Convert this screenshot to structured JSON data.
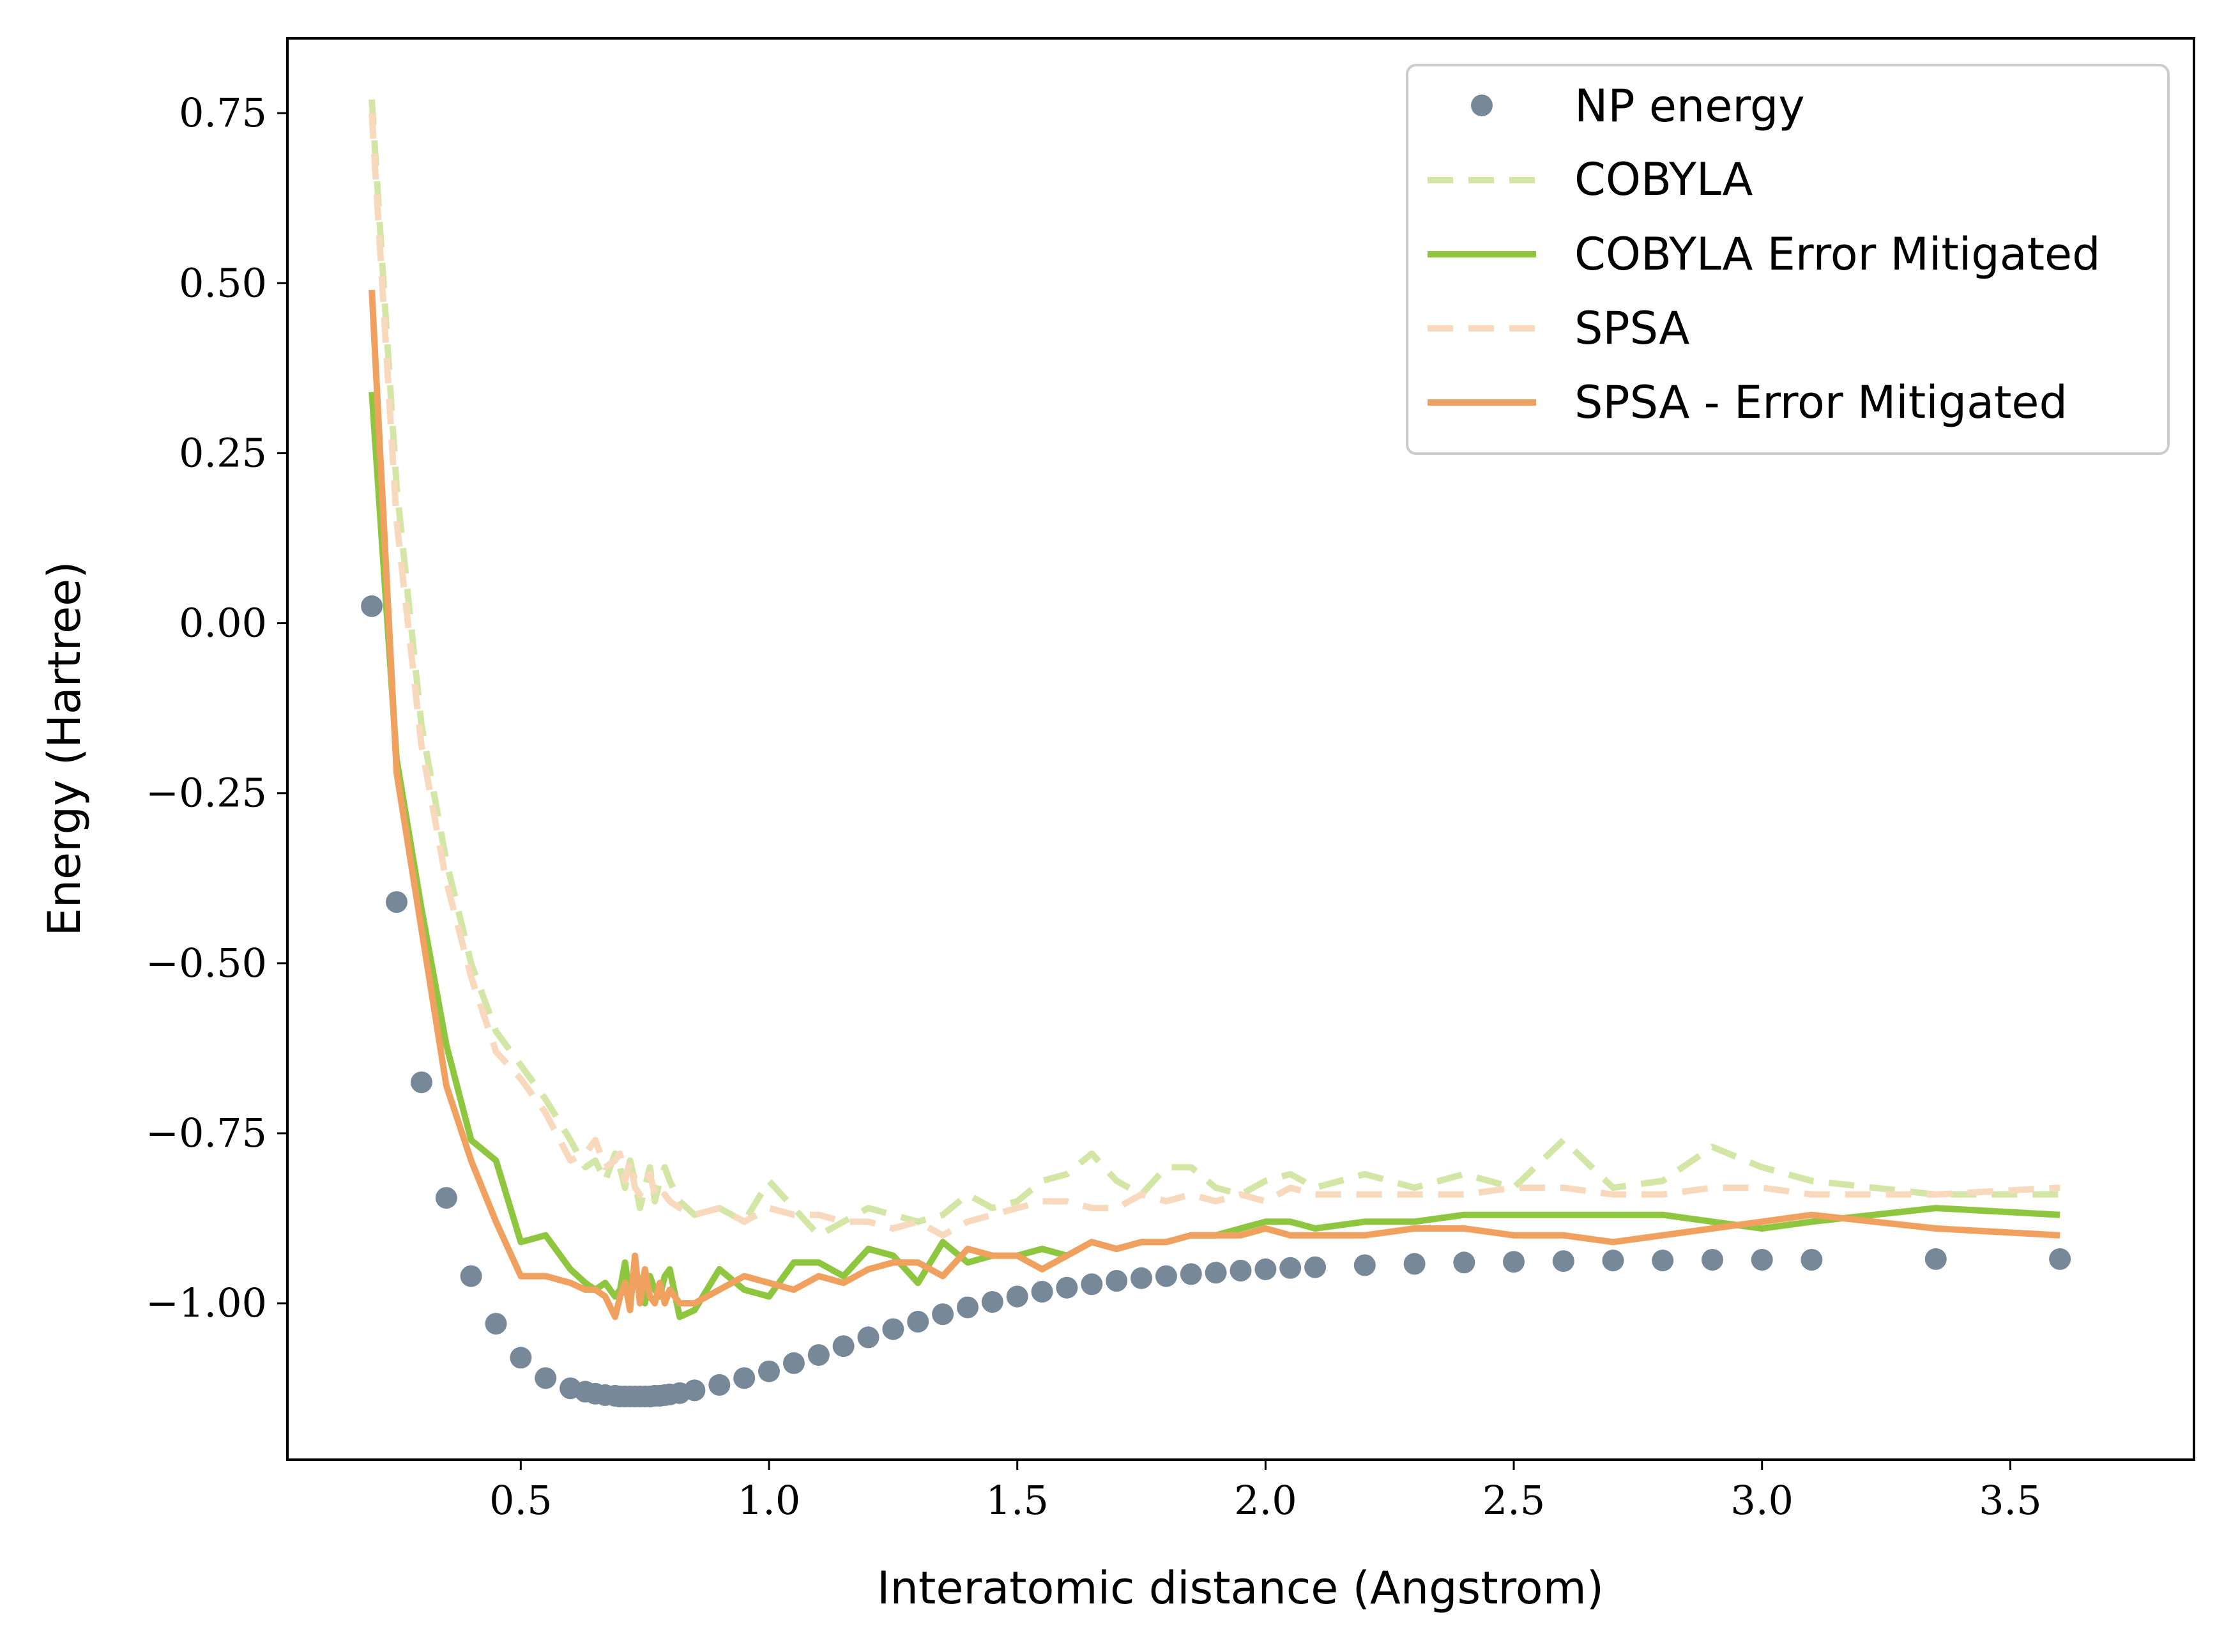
{
  "chart_data": {
    "type": "line",
    "title": "",
    "xlabel": "Interatomic distance (Angstrom)",
    "ylabel": "Energy (Hartree)",
    "xlim": [
      0.03,
      3.87
    ],
    "ylim": [
      -1.23,
      0.86
    ],
    "xticks": [
      0.5,
      1.0,
      1.5,
      2.0,
      2.5,
      3.0,
      3.5
    ],
    "xtick_labels": [
      "0.5",
      "1.0",
      "1.5",
      "2.0",
      "2.5",
      "3.0",
      "3.5"
    ],
    "yticks": [
      0.75,
      0.5,
      0.25,
      0.0,
      -0.25,
      -0.5,
      -0.75,
      -1.0
    ],
    "ytick_labels": [
      "0.75",
      "0.50",
      "0.25",
      "0.00",
      "−0.25",
      "−0.50",
      "−0.75",
      "−1.00"
    ],
    "grid": false,
    "legend_position": "top-right",
    "series": [
      {
        "name": "NP energy",
        "style": "markers",
        "color": "#778899",
        "x": [
          0.2,
          0.25,
          0.3,
          0.35,
          0.4,
          0.45,
          0.5,
          0.55,
          0.6,
          0.63,
          0.65,
          0.67,
          0.69,
          0.7,
          0.71,
          0.72,
          0.73,
          0.74,
          0.75,
          0.76,
          0.77,
          0.78,
          0.79,
          0.8,
          0.82,
          0.85,
          0.9,
          0.95,
          1.0,
          1.05,
          1.1,
          1.15,
          1.2,
          1.25,
          1.3,
          1.35,
          1.4,
          1.45,
          1.5,
          1.55,
          1.6,
          1.65,
          1.7,
          1.75,
          1.8,
          1.85,
          1.9,
          1.95,
          2.0,
          2.05,
          2.1,
          2.2,
          2.3,
          2.4,
          2.5,
          2.6,
          2.7,
          2.8,
          2.9,
          3.0,
          3.1,
          3.35,
          3.6
        ],
        "y": [
          0.025,
          -0.41,
          -0.675,
          -0.845,
          -0.96,
          -1.03,
          -1.08,
          -1.11,
          -1.125,
          -1.13,
          -1.133,
          -1.135,
          -1.136,
          -1.137,
          -1.137,
          -1.137,
          -1.137,
          -1.137,
          -1.137,
          -1.137,
          -1.136,
          -1.136,
          -1.135,
          -1.134,
          -1.132,
          -1.128,
          -1.12,
          -1.11,
          -1.1,
          -1.088,
          -1.076,
          -1.063,
          -1.05,
          -1.038,
          -1.027,
          -1.016,
          -1.006,
          -0.998,
          -0.99,
          -0.983,
          -0.977,
          -0.972,
          -0.967,
          -0.963,
          -0.96,
          -0.957,
          -0.955,
          -0.952,
          -0.95,
          -0.948,
          -0.947,
          -0.944,
          -0.942,
          -0.94,
          -0.939,
          -0.938,
          -0.937,
          -0.937,
          -0.936,
          -0.936,
          -0.936,
          -0.935,
          -0.935
        ]
      },
      {
        "name": "COBYLA",
        "style": "dashed",
        "color": "#d4e6a5",
        "x": [
          0.2,
          0.25,
          0.3,
          0.35,
          0.4,
          0.45,
          0.5,
          0.55,
          0.6,
          0.63,
          0.65,
          0.67,
          0.69,
          0.7,
          0.71,
          0.72,
          0.73,
          0.74,
          0.75,
          0.76,
          0.77,
          0.78,
          0.79,
          0.8,
          0.82,
          0.85,
          0.9,
          0.95,
          1.0,
          1.05,
          1.1,
          1.15,
          1.2,
          1.25,
          1.3,
          1.35,
          1.4,
          1.45,
          1.5,
          1.55,
          1.6,
          1.65,
          1.7,
          1.75,
          1.8,
          1.85,
          1.9,
          1.95,
          2.0,
          2.05,
          2.1,
          2.2,
          2.3,
          2.4,
          2.5,
          2.6,
          2.7,
          2.8,
          2.9,
          3.0,
          3.1,
          3.35,
          3.6
        ],
        "y": [
          0.77,
          0.2,
          -0.15,
          -0.35,
          -0.5,
          -0.6,
          -0.65,
          -0.7,
          -0.76,
          -0.8,
          -0.79,
          -0.82,
          -0.78,
          -0.8,
          -0.83,
          -0.79,
          -0.82,
          -0.86,
          -0.83,
          -0.8,
          -0.85,
          -0.82,
          -0.8,
          -0.82,
          -0.85,
          -0.87,
          -0.86,
          -0.88,
          -0.82,
          -0.86,
          -0.9,
          -0.88,
          -0.86,
          -0.87,
          -0.88,
          -0.87,
          -0.84,
          -0.86,
          -0.85,
          -0.82,
          -0.81,
          -0.78,
          -0.82,
          -0.84,
          -0.8,
          -0.8,
          -0.83,
          -0.84,
          -0.82,
          -0.81,
          -0.83,
          -0.81,
          -0.83,
          -0.81,
          -0.83,
          -0.76,
          -0.83,
          -0.82,
          -0.77,
          -0.8,
          -0.82,
          -0.84,
          -0.84
        ]
      },
      {
        "name": "COBYLA Error Mitigated",
        "style": "solid",
        "color": "#8ec63f",
        "x": [
          0.2,
          0.25,
          0.3,
          0.35,
          0.4,
          0.45,
          0.5,
          0.55,
          0.6,
          0.63,
          0.65,
          0.67,
          0.69,
          0.7,
          0.71,
          0.72,
          0.73,
          0.74,
          0.75,
          0.76,
          0.77,
          0.78,
          0.79,
          0.8,
          0.82,
          0.85,
          0.9,
          0.95,
          1.0,
          1.05,
          1.1,
          1.15,
          1.2,
          1.25,
          1.3,
          1.35,
          1.4,
          1.45,
          1.5,
          1.55,
          1.6,
          1.65,
          1.7,
          1.75,
          1.8,
          1.85,
          1.9,
          1.95,
          2.0,
          2.05,
          2.1,
          2.2,
          2.3,
          2.4,
          2.5,
          2.6,
          2.7,
          2.8,
          2.9,
          3.0,
          3.1,
          3.35,
          3.6
        ],
        "y": [
          0.34,
          -0.2,
          -0.42,
          -0.62,
          -0.76,
          -0.79,
          -0.91,
          -0.9,
          -0.95,
          -0.97,
          -0.98,
          -0.97,
          -0.99,
          -0.98,
          -0.94,
          -0.99,
          -0.95,
          -0.97,
          -1.0,
          -0.96,
          -0.98,
          -0.99,
          -0.96,
          -0.95,
          -1.02,
          -1.01,
          -0.95,
          -0.98,
          -0.99,
          -0.94,
          -0.94,
          -0.96,
          -0.92,
          -0.93,
          -0.97,
          -0.91,
          -0.94,
          -0.93,
          -0.93,
          -0.92,
          -0.93,
          -0.91,
          -0.92,
          -0.91,
          -0.91,
          -0.9,
          -0.9,
          -0.89,
          -0.88,
          -0.88,
          -0.89,
          -0.88,
          -0.88,
          -0.87,
          -0.87,
          -0.87,
          -0.87,
          -0.87,
          -0.88,
          -0.89,
          -0.88,
          -0.86,
          -0.87
        ]
      },
      {
        "name": "SPSA",
        "style": "dashed",
        "color": "#f8d9bd",
        "x": [
          0.2,
          0.25,
          0.3,
          0.35,
          0.4,
          0.45,
          0.5,
          0.55,
          0.6,
          0.63,
          0.65,
          0.67,
          0.69,
          0.7,
          0.71,
          0.72,
          0.73,
          0.74,
          0.75,
          0.76,
          0.77,
          0.78,
          0.79,
          0.8,
          0.82,
          0.85,
          0.9,
          0.95,
          1.0,
          1.05,
          1.1,
          1.15,
          1.2,
          1.25,
          1.3,
          1.35,
          1.4,
          1.45,
          1.5,
          1.55,
          1.6,
          1.65,
          1.7,
          1.75,
          1.8,
          1.85,
          1.9,
          1.95,
          2.0,
          2.05,
          2.1,
          2.2,
          2.3,
          2.4,
          2.5,
          2.6,
          2.7,
          2.8,
          2.9,
          3.0,
          3.1,
          3.35,
          3.6
        ],
        "y": [
          0.75,
          0.15,
          -0.18,
          -0.38,
          -0.52,
          -0.63,
          -0.67,
          -0.72,
          -0.79,
          -0.78,
          -0.76,
          -0.8,
          -0.79,
          -0.78,
          -0.82,
          -0.79,
          -0.83,
          -0.84,
          -0.82,
          -0.81,
          -0.84,
          -0.85,
          -0.84,
          -0.85,
          -0.86,
          -0.87,
          -0.86,
          -0.88,
          -0.86,
          -0.87,
          -0.87,
          -0.88,
          -0.88,
          -0.89,
          -0.88,
          -0.9,
          -0.88,
          -0.87,
          -0.86,
          -0.85,
          -0.85,
          -0.86,
          -0.86,
          -0.84,
          -0.85,
          -0.84,
          -0.85,
          -0.84,
          -0.85,
          -0.83,
          -0.84,
          -0.84,
          -0.84,
          -0.84,
          -0.83,
          -0.83,
          -0.84,
          -0.84,
          -0.83,
          -0.83,
          -0.84,
          -0.84,
          -0.83
        ]
      },
      {
        "name": "SPSA - Error Mitigated",
        "style": "solid",
        "color": "#f0a160",
        "x": [
          0.2,
          0.25,
          0.3,
          0.35,
          0.4,
          0.45,
          0.5,
          0.55,
          0.6,
          0.63,
          0.65,
          0.67,
          0.69,
          0.7,
          0.71,
          0.72,
          0.73,
          0.74,
          0.75,
          0.76,
          0.77,
          0.78,
          0.79,
          0.8,
          0.82,
          0.85,
          0.9,
          0.95,
          1.0,
          1.05,
          1.1,
          1.15,
          1.2,
          1.25,
          1.3,
          1.35,
          1.4,
          1.45,
          1.5,
          1.55,
          1.6,
          1.65,
          1.7,
          1.75,
          1.8,
          1.85,
          1.9,
          1.95,
          2.0,
          2.05,
          2.1,
          2.2,
          2.3,
          2.4,
          2.5,
          2.6,
          2.7,
          2.8,
          2.9,
          3.0,
          3.1,
          3.35,
          3.6
        ],
        "y": [
          0.49,
          -0.22,
          -0.45,
          -0.68,
          -0.79,
          -0.88,
          -0.96,
          -0.96,
          -0.97,
          -0.98,
          -0.98,
          -0.99,
          -1.02,
          -0.99,
          -0.97,
          -1.01,
          -0.93,
          -1.0,
          -0.95,
          -0.99,
          -1.0,
          -0.97,
          -1.0,
          -0.98,
          -1.0,
          -1.0,
          -0.98,
          -0.96,
          -0.97,
          -0.98,
          -0.96,
          -0.97,
          -0.95,
          -0.94,
          -0.94,
          -0.96,
          -0.92,
          -0.93,
          -0.93,
          -0.95,
          -0.93,
          -0.91,
          -0.92,
          -0.91,
          -0.91,
          -0.9,
          -0.9,
          -0.9,
          -0.89,
          -0.9,
          -0.9,
          -0.9,
          -0.89,
          -0.89,
          -0.9,
          -0.9,
          -0.91,
          -0.9,
          -0.89,
          -0.88,
          -0.87,
          -0.89,
          -0.9
        ]
      }
    ]
  }
}
